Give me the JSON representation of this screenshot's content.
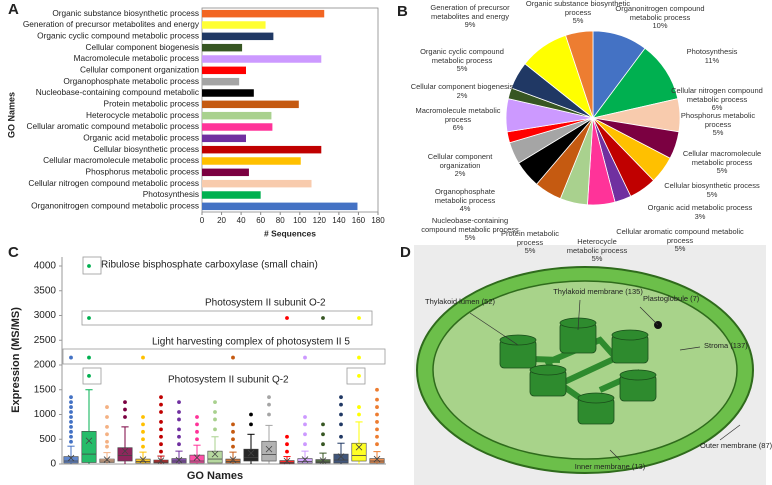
{
  "chart_data": [
    {
      "type": "barh",
      "panel": "A",
      "ylabel": "GO Names",
      "xlabel": "# Sequences",
      "categories": [
        "Organic substance biosynthetic process",
        "Generation of precursor metabolites and energy",
        "Organic cyclic compound metabolic process",
        "Cellular component biogenesis",
        "Macromolecule metabolic process",
        "Cellular component organization",
        "Organophosphate metabolic process",
        "Nucleobase-containing compound metabolic",
        "Protein metabolic process",
        "Heterocycle metabolic process",
        "Cellular aromatic compound metabolic process",
        "Organic acid metabolic process",
        "Cellular biosynthetic process",
        "Cellular macromolecule metabolic process",
        "Phosphorus metabolic process",
        "Cellular nitrogen compound metabolic process",
        "Photosynthesis",
        "Organonitrogen compound metabolic process"
      ],
      "values": [
        125,
        65,
        73,
        41,
        122,
        45,
        38,
        53,
        99,
        71,
        72,
        45,
        122,
        101,
        48,
        112,
        60,
        159
      ],
      "colors": [
        "#f26522",
        "#ffff33",
        "#203864",
        "#375623",
        "#cc99ff",
        "#ff0000",
        "#a5a5a5",
        "#000000",
        "#c55a11",
        "#a9d18e",
        "#ff3399",
        "#7030a0",
        "#c00000",
        "#ffc000",
        "#7b0041",
        "#f8cbad",
        "#00b050",
        "#4472c4"
      ],
      "xlim": [
        0,
        180
      ],
      "xticks": [
        0,
        20,
        40,
        60,
        80,
        100,
        120,
        140,
        160,
        180
      ]
    },
    {
      "type": "pie",
      "panel": "B",
      "categories": [
        "Organonitrogen compound metabolic process",
        "Photosynthesis",
        "Cellular nitrogen compound metabolic process",
        "Phosphorus metabolic process",
        "Cellular macromolecule metabolic process",
        "Cellular biosynthetic process",
        "Organic acid metabolic process",
        "Cellular aromatic compound metabolic process",
        "Heterocycle metabolic process",
        "Protein metabolic process",
        "Nucleobase-containing compound metabolic process",
        "Organophosphate metabolic process",
        "Cellular component organization",
        "Macromolecule metabolic process",
        "Cellular component biogenesis",
        "Organic cyclic compound metabolic process",
        "Generation of precursor metabolites and energy",
        "Organic substance biosynthetic process"
      ],
      "values": [
        10,
        11,
        6,
        5,
        5,
        5,
        3,
        5,
        5,
        5,
        5,
        4,
        2,
        6,
        2,
        5,
        9,
        5
      ],
      "value_labels": [
        "10%",
        "11%",
        "6%",
        "5%",
        "5%",
        "5%",
        "3%",
        "5%",
        "5%",
        "5%",
        "5%",
        "4%",
        "2%",
        "6%",
        "2%",
        "5%",
        "9%",
        "5%"
      ],
      "colors": [
        "#4472c4",
        "#00b050",
        "#f8cbad",
        "#7b0041",
        "#ffc000",
        "#c00000",
        "#7030a0",
        "#ff3399",
        "#a9d18e",
        "#c55a11",
        "#000000",
        "#a5a5a5",
        "#ff0000",
        "#cc99ff",
        "#375623",
        "#203864",
        "#ffff00",
        "#ed7d31"
      ]
    },
    {
      "type": "box",
      "panel": "C",
      "ylabel": "Expression (MS/MS)",
      "xlabel": "GO Names",
      "ylim": [
        0,
        4000
      ],
      "yticks": [
        0,
        500,
        1000,
        1500,
        2000,
        2500,
        3000,
        3500,
        4000
      ],
      "annotations": [
        "Ribulose bisphosphate carboxylase (small chain)",
        "Photosystem II subunit O-2",
        "Light harvesting complex of photosystem II 5",
        "Photosystem II subunit Q-2"
      ],
      "boxes": [
        {
          "color": "#4472c4",
          "whisker_low": 0,
          "q1": 20,
          "median": 60,
          "q3": 150,
          "whisker_high": 360,
          "mean": 120,
          "outliers": [
            450,
            550,
            650,
            750,
            850,
            950,
            1050,
            1150,
            1250,
            1350,
            2150
          ]
        },
        {
          "color": "#00b050",
          "whisker_low": 0,
          "q1": 30,
          "median": 200,
          "q3": 660,
          "whisker_high": 1500,
          "mean": 470,
          "outliers": [
            1780,
            2150,
            2950,
            4000
          ]
        },
        {
          "color": "#f4b183",
          "whisker_low": 0,
          "q1": 30,
          "median": 60,
          "q3": 100,
          "whisker_high": 230,
          "mean": 90,
          "outliers": [
            350,
            450,
            600,
            750,
            950,
            1150
          ]
        },
        {
          "color": "#7b0041",
          "whisker_low": 0,
          "q1": 60,
          "median": 170,
          "q3": 330,
          "whisker_high": 750,
          "mean": 260,
          "outliers": [
            950,
            1100,
            1250
          ]
        },
        {
          "color": "#ffc000",
          "whisker_low": 0,
          "q1": 20,
          "median": 50,
          "q3": 100,
          "whisker_high": 240,
          "mean": 90,
          "outliers": [
            350,
            500,
            650,
            800,
            950,
            2150
          ]
        },
        {
          "color": "#c00000",
          "whisker_low": 0,
          "q1": 20,
          "median": 40,
          "q3": 80,
          "whisker_high": 160,
          "mean": 70,
          "outliers": [
            250,
            400,
            550,
            700,
            850,
            1050,
            1200,
            1350
          ]
        },
        {
          "color": "#7030a0",
          "whisker_low": 0,
          "q1": 20,
          "median": 60,
          "q3": 110,
          "whisker_high": 260,
          "mean": 80,
          "outliers": [
            400,
            550,
            700,
            900,
            1050,
            1250
          ]
        },
        {
          "color": "#ff3399",
          "whisker_low": 0,
          "q1": 20,
          "median": 60,
          "q3": 180,
          "whisker_high": 380,
          "mean": 130,
          "outliers": [
            500,
            650,
            800,
            950
          ]
        },
        {
          "color": "#a9d18e",
          "whisker_low": 0,
          "q1": 20,
          "median": 100,
          "q3": 260,
          "whisker_high": 550,
          "mean": 200,
          "outliers": [
            700,
            900,
            1050,
            1250
          ]
        },
        {
          "color": "#c55a11",
          "whisker_low": 0,
          "q1": 20,
          "median": 50,
          "q3": 100,
          "whisker_high": 240,
          "mean": 90,
          "outliers": [
            350,
            500,
            650,
            800,
            2150
          ]
        },
        {
          "color": "#000000",
          "whisker_low": 0,
          "q1": 60,
          "median": 130,
          "q3": 300,
          "whisker_high": 600,
          "mean": 220,
          "outliers": [
            800,
            1000
          ]
        },
        {
          "color": "#a5a5a5",
          "whisker_low": 0,
          "q1": 60,
          "median": 190,
          "q3": 460,
          "whisker_high": 780,
          "mean": 300,
          "outliers": [
            1000,
            1200,
            1350
          ]
        },
        {
          "color": "#ff0000",
          "whisker_low": 0,
          "q1": 10,
          "median": 30,
          "q3": 70,
          "whisker_high": 150,
          "mean": 60,
          "outliers": [
            250,
            400,
            550,
            2950
          ]
        },
        {
          "color": "#cc99ff",
          "whisker_low": 0,
          "q1": 20,
          "median": 50,
          "q3": 110,
          "whisker_high": 260,
          "mean": 90,
          "outliers": [
            400,
            600,
            800,
            950,
            2150
          ]
        },
        {
          "color": "#375623",
          "whisker_low": 0,
          "q1": 20,
          "median": 40,
          "q3": 90,
          "whisker_high": 220,
          "mean": 70,
          "outliers": [
            400,
            600,
            800,
            2950
          ]
        },
        {
          "color": "#203864",
          "whisker_low": 0,
          "q1": 20,
          "median": 80,
          "q3": 200,
          "whisker_high": 420,
          "mean": 150,
          "outliers": [
            550,
            800,
            1000,
            1200,
            1350
          ]
        },
        {
          "color": "#ffff00",
          "whisker_low": 0,
          "q1": 60,
          "median": 170,
          "q3": 420,
          "whisker_high": 850,
          "mean": 340,
          "outliers": [
            1000,
            1150,
            1780,
            2150,
            2950
          ]
        },
        {
          "color": "#ed7d31",
          "whisker_low": 0,
          "q1": 20,
          "median": 60,
          "q3": 110,
          "whisker_high": 250,
          "mean": 100,
          "outliers": [
            400,
            550,
            700,
            850,
            1000,
            1150,
            1300,
            1500
          ]
        }
      ]
    }
  ],
  "diagram": {
    "panel": "D",
    "labels": [
      "Thylakoid membrane (135)",
      "Thylakoid lumen (52)",
      "Plastoglobule (7)",
      "Stroma (137)",
      "Outer membrane (87)",
      "Inner membrane (13)"
    ]
  }
}
